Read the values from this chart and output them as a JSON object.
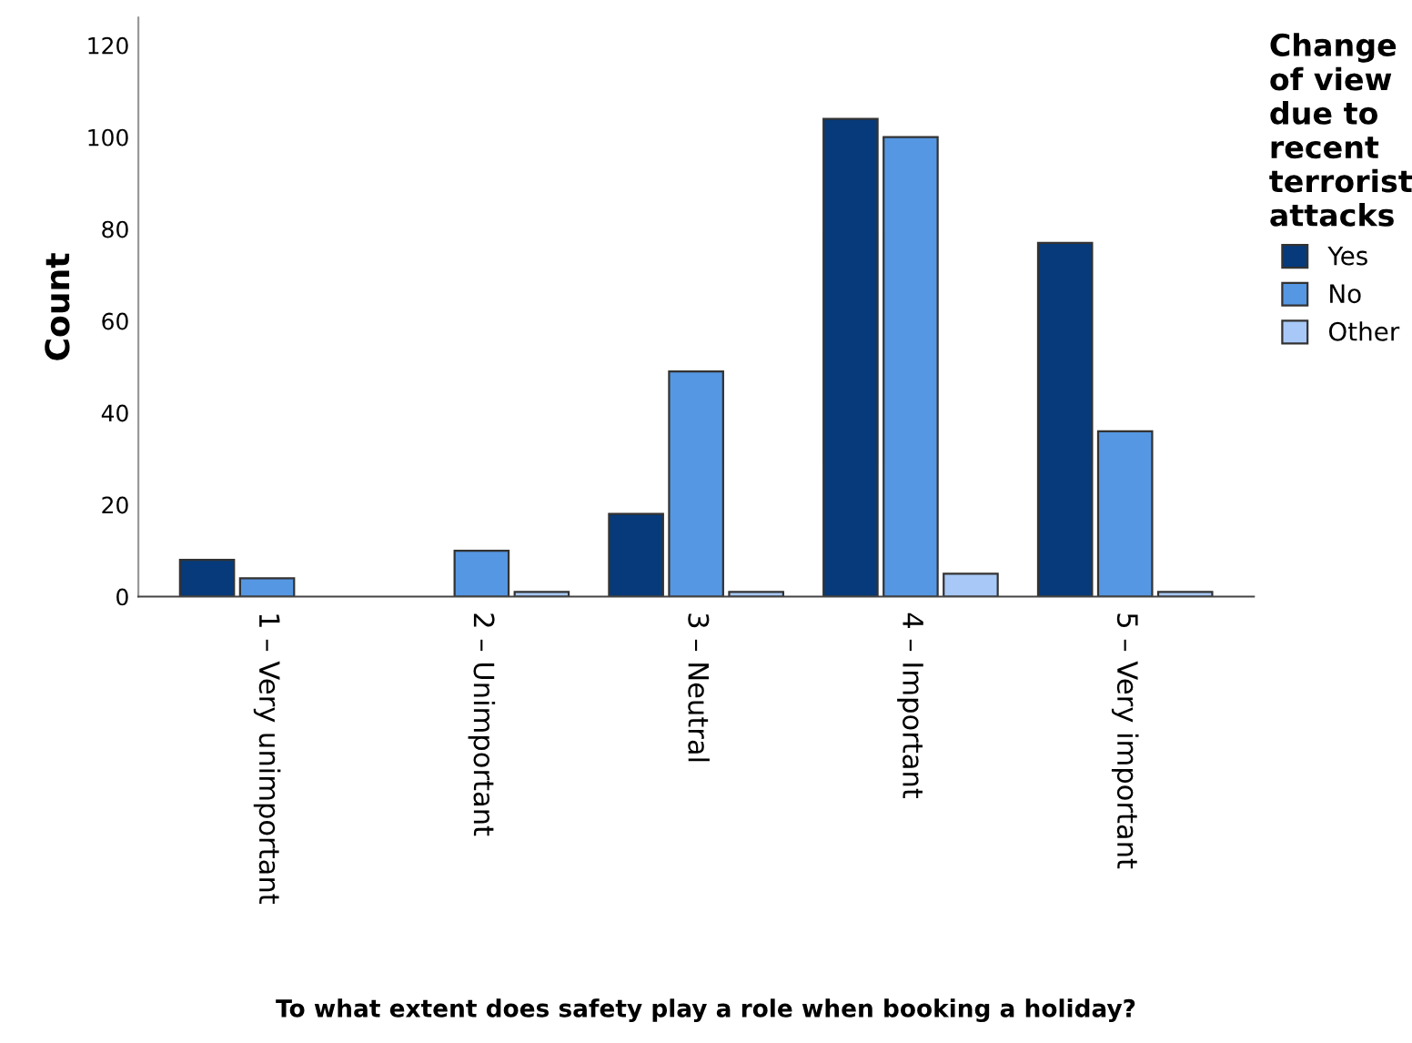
{
  "chart_data": {
    "type": "bar",
    "xlabel": "To what extent does safety play a role when booking a holiday?",
    "ylabel": "Count",
    "legend_title": "Change\nof view\ndue to\nrecent\nterrorist\nattacks",
    "categories": [
      "1 – Very unimportant",
      "2 – Unimportant",
      "3 – Neutral",
      "4 – Important",
      "5 – Very important"
    ],
    "series": [
      {
        "name": "Yes",
        "color": "#063a7a",
        "values": [
          8,
          null,
          18,
          104,
          77
        ]
      },
      {
        "name": "No",
        "color": "#5597e3",
        "values": [
          4,
          10,
          49,
          100,
          36
        ]
      },
      {
        "name": "Other",
        "color": "#a8c8f7",
        "values": [
          null,
          1,
          1,
          5,
          1
        ]
      }
    ],
    "ylim": [
      0,
      126
    ],
    "yticks": [
      0,
      20,
      40,
      60,
      80,
      100,
      120
    ],
    "grid": false,
    "legend": "right"
  }
}
